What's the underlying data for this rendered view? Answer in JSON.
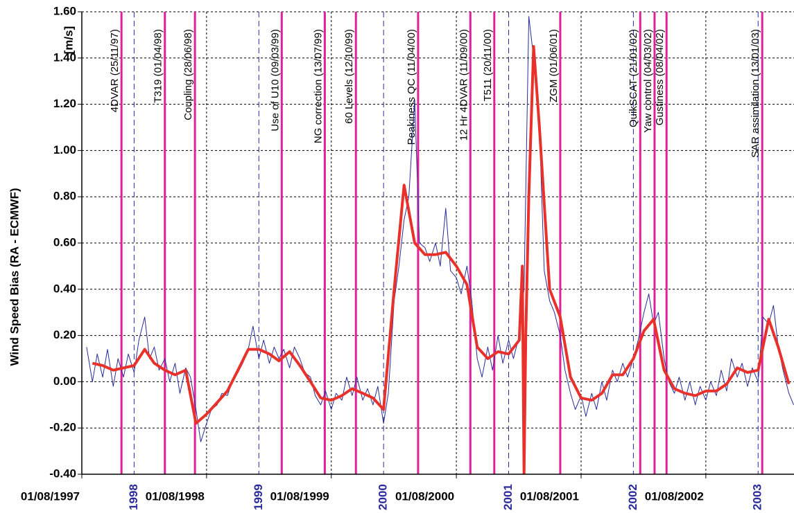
{
  "chart_data": {
    "type": "line",
    "y_label": "Wind Speed Bias (RA - ECMWF)",
    "y_unit": "[m/s]",
    "ylim": [
      -0.4,
      1.6
    ],
    "yticks": [
      {
        "value": -0.4,
        "label": "-0.40"
      },
      {
        "value": -0.2,
        "label": "-0.20"
      },
      {
        "value": 0,
        "label": "0.00"
      },
      {
        "value": 0.2,
        "label": "0.20"
      },
      {
        "value": 0.4,
        "label": "0.40"
      },
      {
        "value": 0.6,
        "label": "0.60"
      },
      {
        "value": 0.8,
        "label": "0.80"
      },
      {
        "value": 1.0,
        "label": "1.00"
      },
      {
        "value": 1.2,
        "label": "1.20"
      },
      {
        "value": 1.4,
        "label": "1.40"
      },
      {
        "value": 1.6,
        "label": "1.60"
      }
    ],
    "xlim": [
      "1997-08-01",
      "2003-04-16"
    ],
    "xticks": [
      {
        "value": "1997-08-01",
        "label": "01/08/1997"
      },
      {
        "value": "1998-08-01",
        "label": "01/08/1998"
      },
      {
        "value": "1999-08-01",
        "label": "01/08/1999"
      },
      {
        "value": "2000-08-01",
        "label": "01/08/2000"
      },
      {
        "value": "2001-08-01",
        "label": "01/08/2001"
      },
      {
        "value": "2002-08-01",
        "label": "01/08/2002"
      }
    ],
    "year_ticks": [
      {
        "value": "1998-01-01",
        "label": "1998"
      },
      {
        "value": "1999-01-01",
        "label": "1999"
      },
      {
        "value": "2000-01-01",
        "label": "2000"
      },
      {
        "value": "2001-01-01",
        "label": "2001"
      },
      {
        "value": "2002-01-01",
        "label": "2002"
      },
      {
        "value": "2003-01-01",
        "label": "2003"
      }
    ],
    "year_tick_color": "#2a2a9a",
    "grid": true,
    "annotation_color": "#e0209a",
    "annotations": [
      {
        "label": "4DVAR (25/11/97)",
        "x": "1997-11-25"
      },
      {
        "label": "T319 (01/04/98)",
        "x": "1998-04-01"
      },
      {
        "label": "Coupling (28/06/98)",
        "x": "1998-06-28"
      },
      {
        "label": "Use of U10 (09/03/99)",
        "x": "1999-03-09"
      },
      {
        "label": "NG correction (13/07/99)",
        "x": "1999-07-13"
      },
      {
        "label": "60 Levels (12/10/99)",
        "x": "1999-10-12"
      },
      {
        "label": "Peakiness QC (11/04/00)",
        "x": "2000-04-11"
      },
      {
        "label": "12 Hr 4DVAR (11/09/00)",
        "x": "2000-09-11"
      },
      {
        "label": "T511 (20/11/00)",
        "x": "2000-11-20"
      },
      {
        "label": "ZGM (01/06/01)",
        "x": "2001-06-01"
      },
      {
        "label": "QuikSCAT (21/01/02)",
        "x": "2002-01-21"
      },
      {
        "label": "Yaw control (04/03/02)",
        "x": "2002-03-04"
      },
      {
        "label": "Gustiness (08/04/02)",
        "x": "2002-04-08"
      },
      {
        "label": "SAR assimilation (13/01/03)",
        "x": "2003-01-13"
      }
    ],
    "series": [
      {
        "color": "#2a2a9a",
        "width": 1,
        "x": [
          "1997-08-15",
          "1997-09-01",
          "1997-09-15",
          "1997-10-01",
          "1997-10-15",
          "1997-11-01",
          "1997-11-15",
          "1997-12-01",
          "1997-12-15",
          "1998-01-01",
          "1998-01-15",
          "1998-02-01",
          "1998-02-15",
          "1998-03-01",
          "1998-03-15",
          "1998-04-01",
          "1998-04-15",
          "1998-05-01",
          "1998-05-15",
          "1998-06-01",
          "1998-06-15",
          "1998-07-01",
          "1998-07-15",
          "1998-08-01",
          "1998-08-15",
          "1998-09-01",
          "1998-09-15",
          "1998-10-01",
          "1998-10-15",
          "1998-11-01",
          "1998-11-15",
          "1998-12-01",
          "1998-12-15",
          "1999-01-01",
          "1999-01-15",
          "1999-02-01",
          "1999-02-15",
          "1999-03-01",
          "1999-03-15",
          "1999-04-01",
          "1999-04-15",
          "1999-05-01",
          "1999-05-15",
          "1999-06-01",
          "1999-06-15",
          "1999-07-01",
          "1999-07-15",
          "1999-08-01",
          "1999-08-15",
          "1999-09-01",
          "1999-09-15",
          "1999-10-01",
          "1999-10-15",
          "1999-11-01",
          "1999-11-15",
          "1999-12-01",
          "1999-12-15",
          "2000-01-01",
          "2000-01-15",
          "2000-02-01",
          "2000-02-15",
          "2000-03-01",
          "2000-03-15",
          "2000-04-01",
          "2000-04-15",
          "2000-05-01",
          "2000-05-15",
          "2000-06-01",
          "2000-06-15",
          "2000-07-01",
          "2000-07-15",
          "2000-08-01",
          "2000-08-15",
          "2000-09-01",
          "2000-09-15",
          "2000-10-01",
          "2000-10-15",
          "2000-11-01",
          "2000-11-15",
          "2000-12-01",
          "2000-12-15",
          "2001-01-01",
          "2001-01-15",
          "2001-02-01",
          "2001-02-15",
          "2001-03-01",
          "2001-03-15",
          "2001-04-01",
          "2001-04-15",
          "2001-05-01",
          "2001-05-15",
          "2001-06-01",
          "2001-06-15",
          "2001-07-01",
          "2001-07-15",
          "2001-08-01",
          "2001-08-15",
          "2001-09-01",
          "2001-09-15",
          "2001-10-01",
          "2001-10-15",
          "2001-11-01",
          "2001-11-15",
          "2001-12-01",
          "2001-12-15",
          "2002-01-01",
          "2002-01-15",
          "2002-02-01",
          "2002-02-15",
          "2002-03-01",
          "2002-03-15",
          "2002-04-01",
          "2002-04-15",
          "2002-05-01",
          "2002-05-15",
          "2002-06-01",
          "2002-06-15",
          "2002-07-01",
          "2002-07-15",
          "2002-08-01",
          "2002-08-15",
          "2002-09-01",
          "2002-09-15",
          "2002-10-01",
          "2002-10-15",
          "2002-11-01",
          "2002-11-15",
          "2002-12-01",
          "2002-12-15",
          "2003-01-01",
          "2003-01-15",
          "2003-02-01",
          "2003-02-15",
          "2003-03-01",
          "2003-03-15",
          "2003-04-01",
          "2003-04-15"
        ],
        "values": [
          0.15,
          0.0,
          0.12,
          0.02,
          0.14,
          -0.02,
          0.1,
          0.02,
          0.12,
          0.04,
          0.18,
          0.28,
          0.1,
          0.15,
          0.05,
          0.1,
          0.0,
          0.08,
          -0.05,
          0.06,
          0.02,
          -0.12,
          -0.26,
          -0.18,
          -0.12,
          -0.1,
          -0.05,
          -0.06,
          0.0,
          0.04,
          0.08,
          0.14,
          0.24,
          0.1,
          0.18,
          0.08,
          0.15,
          0.1,
          0.14,
          0.06,
          0.15,
          0.1,
          0.04,
          0.02,
          -0.06,
          -0.1,
          -0.04,
          -0.12,
          -0.05,
          -0.08,
          0.02,
          -0.06,
          0.02,
          -0.08,
          -0.03,
          -0.1,
          -0.02,
          -0.18,
          -0.05,
          0.35,
          0.5,
          0.7,
          0.8,
          1.22,
          0.6,
          0.58,
          0.52,
          0.6,
          0.5,
          0.75,
          0.48,
          0.45,
          0.38,
          0.5,
          0.35,
          0.1,
          0.02,
          0.15,
          0.05,
          0.2,
          0.08,
          0.18,
          0.1,
          0.2,
          0.4,
          1.58,
          1.4,
          1.1,
          0.48,
          0.35,
          0.3,
          0.2,
          0.05,
          -0.05,
          -0.12,
          -0.06,
          -0.15,
          -0.05,
          -0.12,
          0.0,
          -0.08,
          0.05,
          0.0,
          0.08,
          0.02,
          0.1,
          0.18,
          0.3,
          0.38,
          0.25,
          0.3,
          0.1,
          0.0,
          -0.05,
          0.02,
          -0.08,
          0.0,
          -0.1,
          -0.02,
          -0.08,
          0.0,
          -0.06,
          0.05,
          -0.04,
          0.1,
          0.02,
          0.08,
          -0.02,
          0.06,
          0.0,
          0.28,
          0.25,
          0.33,
          0.15,
          0.05,
          -0.05,
          -0.1
        ]
      },
      {
        "color": "#e8312a",
        "width": 4,
        "x": [
          "1997-09-01",
          "1997-10-01",
          "1997-11-01",
          "1997-12-01",
          "1998-01-01",
          "1998-02-01",
          "1998-03-01",
          "1998-04-01",
          "1998-05-01",
          "1998-06-01",
          "1998-07-01",
          "1998-08-01",
          "1998-09-01",
          "1998-10-01",
          "1998-11-01",
          "1998-12-01",
          "1999-01-01",
          "1999-02-01",
          "1999-03-01",
          "1999-04-01",
          "1999-05-01",
          "1999-06-01",
          "1999-07-01",
          "1999-08-01",
          "1999-09-01",
          "1999-10-01",
          "1999-11-01",
          "1999-12-01",
          "2000-01-01",
          "2000-02-01",
          "2000-03-01",
          "2000-04-01",
          "2000-05-01",
          "2000-06-01",
          "2000-07-01",
          "2000-08-01",
          "2000-09-01",
          "2000-10-01",
          "2000-11-01",
          "2000-12-01",
          "2001-01-01",
          "2001-02-01",
          "2001-02-10",
          "2001-02-15",
          "2001-02-20",
          "2001-03-01",
          "2001-03-15",
          "2001-04-01",
          "2001-05-01",
          "2001-06-01",
          "2001-07-01",
          "2001-08-01",
          "2001-09-01",
          "2001-10-01",
          "2001-11-01",
          "2001-12-01",
          "2002-01-01",
          "2002-02-01",
          "2002-03-01",
          "2002-04-01",
          "2002-05-01",
          "2002-06-01",
          "2002-07-01",
          "2002-08-01",
          "2002-09-01",
          "2002-10-01",
          "2002-11-01",
          "2002-12-01",
          "2003-01-01",
          "2003-02-01",
          "2003-03-01",
          "2003-04-01"
        ],
        "values": [
          0.08,
          0.07,
          0.05,
          0.06,
          0.07,
          0.14,
          0.08,
          0.05,
          0.03,
          0.05,
          -0.18,
          -0.14,
          -0.09,
          -0.04,
          0.05,
          0.14,
          0.14,
          0.12,
          0.09,
          0.13,
          0.07,
          0.0,
          -0.07,
          -0.08,
          -0.06,
          -0.03,
          -0.05,
          -0.07,
          -0.12,
          0.4,
          0.85,
          0.6,
          0.55,
          0.55,
          0.56,
          0.5,
          0.42,
          0.15,
          0.1,
          0.13,
          0.12,
          0.18,
          0.5,
          -0.4,
          0.2,
          0.8,
          1.45,
          1.1,
          0.4,
          0.28,
          0.02,
          -0.07,
          -0.08,
          -0.05,
          0.03,
          0.03,
          0.1,
          0.22,
          0.27,
          0.05,
          -0.03,
          -0.05,
          -0.06,
          -0.04,
          -0.04,
          -0.01,
          0.06,
          0.04,
          0.05,
          0.27,
          0.15,
          -0.01
        ]
      }
    ]
  }
}
